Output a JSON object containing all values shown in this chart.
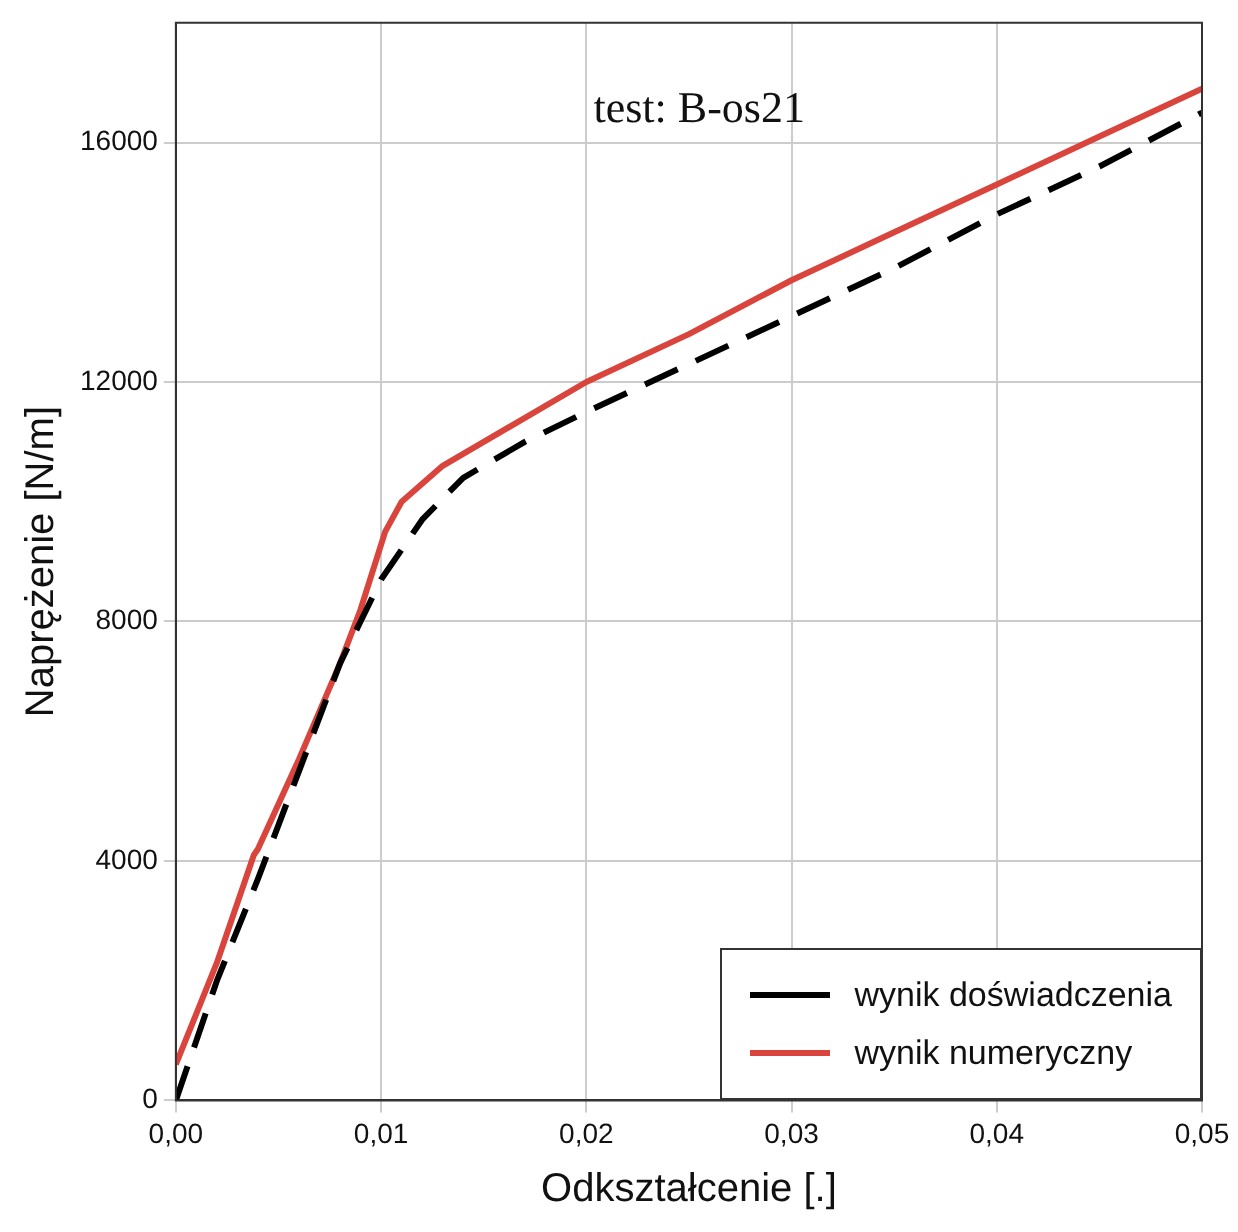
{
  "chart_data": {
    "type": "line",
    "xlabel": "Odkształcenie [.]",
    "ylabel": "Naprężenie [N/m]",
    "annotations": [
      "test: B-os21"
    ],
    "xlim": [
      0,
      0.05
    ],
    "ylim": [
      0,
      18000
    ],
    "xticks": [
      {
        "value": 0,
        "label": "0,00"
      },
      {
        "value": 0.01,
        "label": "0,01"
      },
      {
        "value": 0.02,
        "label": "0,02"
      },
      {
        "value": 0.03,
        "label": "0,03"
      },
      {
        "value": 0.04,
        "label": "0,04"
      },
      {
        "value": 0.05,
        "label": "0,05"
      }
    ],
    "yticks": [
      0,
      4000,
      8000,
      12000,
      16000
    ],
    "grid": true,
    "legend": "bottom right",
    "series": [
      {
        "name": "wynik doświadczenia",
        "color": "#000000",
        "line_style": "dashed",
        "x": [
          0,
          0.002,
          0.004,
          0.006,
          0.008,
          0.009,
          0.01,
          0.011,
          0.012,
          0.014,
          0.017,
          0.02,
          0.025,
          0.03,
          0.035,
          0.04,
          0.045,
          0.05
        ],
        "values": [
          0,
          2000,
          3700,
          5500,
          7300,
          8000,
          8700,
          9200,
          9700,
          10400,
          11000,
          11500,
          12300,
          13100,
          13900,
          14800,
          15600,
          16500
        ]
      },
      {
        "name": "wynik numeryczny",
        "color": "#d9453c",
        "line_style": "solid",
        "x": [
          0,
          0.002,
          0.0038,
          0.004,
          0.006,
          0.008,
          0.009,
          0.0102,
          0.011,
          0.013,
          0.016,
          0.02,
          0.025,
          0.03,
          0.035,
          0.04,
          0.045,
          0.05
        ],
        "values": [
          600,
          2300,
          4100,
          4200,
          5700,
          7300,
          8200,
          9500,
          10000,
          10600,
          11200,
          12000,
          12800,
          13700,
          14500,
          15300,
          16100,
          16900
        ]
      }
    ]
  }
}
